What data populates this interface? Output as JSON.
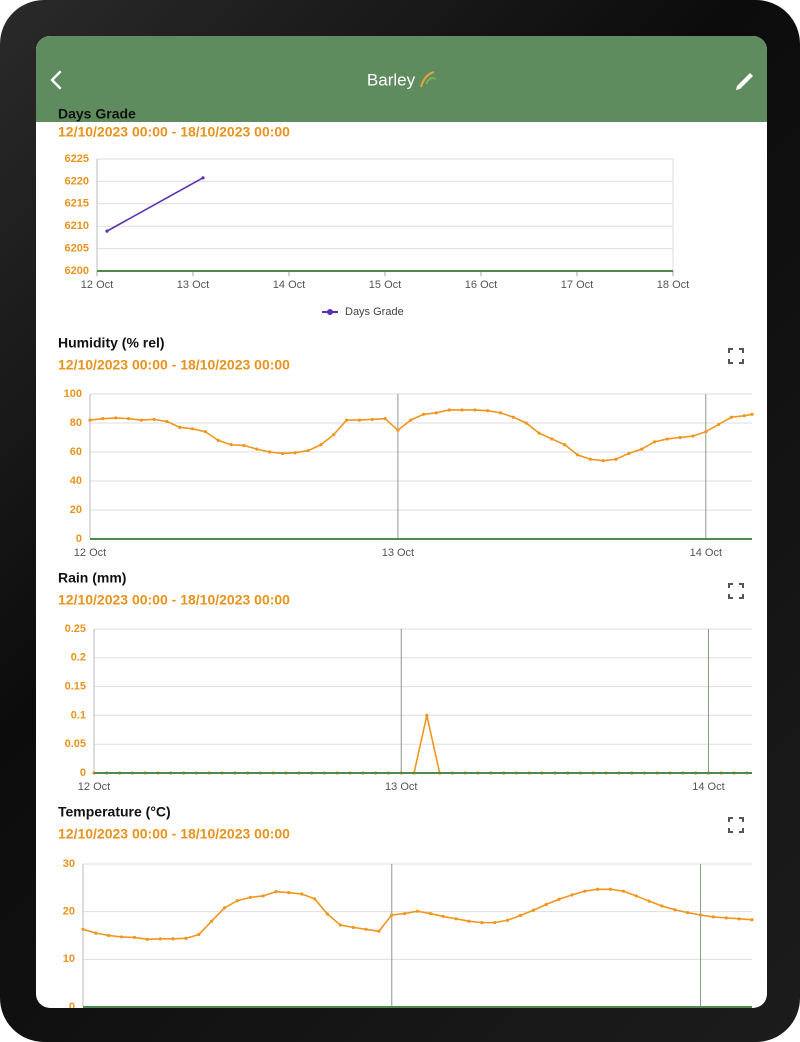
{
  "header": {
    "title": "Barley"
  },
  "chart_data": [
    {
      "type": "line",
      "title": "Days Grade",
      "subtitle": "12/10/2023 00:00 - 18/10/2023 00:00",
      "x": [
        2.5,
        26.5
      ],
      "series": [
        {
          "name": "Days Grade",
          "color": "#5b2fb5",
          "values": [
            6208.9,
            6220.8
          ]
        }
      ],
      "xlim": [
        0,
        144
      ],
      "xticks": [
        {
          "value": 0,
          "label": "12 Oct"
        },
        {
          "value": 24,
          "label": "13 Oct"
        },
        {
          "value": 48,
          "label": "14 Oct"
        },
        {
          "value": 72,
          "label": "15 Oct"
        },
        {
          "value": 96,
          "label": "16 Oct"
        },
        {
          "value": 120,
          "label": "17 Oct"
        },
        {
          "value": 144,
          "label": "18 Oct"
        }
      ],
      "ylim": [
        6200,
        6225
      ],
      "yticks": [
        6200,
        6205,
        6210,
        6215,
        6220,
        6225
      ],
      "grid": true,
      "vgrid": false,
      "legend": "bottom"
    },
    {
      "type": "line",
      "title": "Humidity (% rel)",
      "subtitle": "12/10/2023 00:00 - 18/10/2023 00:00",
      "x": [
        0,
        1,
        2,
        3,
        4,
        5,
        6,
        7,
        8,
        9,
        10,
        11,
        12,
        13,
        14,
        15,
        16,
        17,
        18,
        19,
        20,
        21,
        22,
        23,
        24,
        25,
        26,
        27,
        28,
        29,
        30,
        31,
        32,
        33,
        34,
        35,
        36,
        37,
        38,
        39,
        40,
        41,
        42,
        43,
        44,
        45,
        46,
        47,
        48,
        49,
        50,
        51,
        51.6
      ],
      "series": [
        {
          "color": "#f0961e",
          "values": [
            82,
            83,
            83.5,
            83,
            82,
            82.5,
            81,
            77,
            76,
            74,
            68,
            65,
            64.5,
            62,
            60,
            59,
            59.5,
            61,
            65,
            72,
            82,
            82,
            82.5,
            83,
            75,
            82,
            86,
            87,
            89,
            89,
            89,
            88.5,
            87,
            84,
            80,
            73,
            69,
            65,
            58,
            55,
            54,
            55,
            59,
            62,
            67,
            69,
            70,
            71,
            74,
            79,
            84,
            85,
            86
          ]
        }
      ],
      "xlim": [
        0,
        51.6
      ],
      "xticks": [
        {
          "value": 0,
          "label": "12 Oct"
        },
        {
          "value": 24,
          "label": "13 Oct"
        },
        {
          "value": 48,
          "label": "14 Oct"
        }
      ],
      "ylim": [
        0,
        100
      ],
      "yticks": [
        0,
        20,
        40,
        60,
        80,
        100
      ],
      "grid": true,
      "vgrid": true
    },
    {
      "type": "line",
      "title": "Rain (mm)",
      "subtitle": "12/10/2023 00:00 - 18/10/2023 00:00",
      "x": [
        0,
        1,
        2,
        3,
        4,
        5,
        6,
        7,
        8,
        9,
        10,
        11,
        12,
        13,
        14,
        15,
        16,
        17,
        18,
        19,
        20,
        21,
        22,
        23,
        24,
        25,
        26,
        27,
        28,
        29,
        30,
        31,
        32,
        33,
        34,
        35,
        36,
        37,
        38,
        39,
        40,
        41,
        42,
        43,
        44,
        45,
        46,
        47,
        48,
        49,
        50,
        51
      ],
      "series": [
        {
          "color": "#f0961e",
          "values": [
            0,
            0,
            0,
            0,
            0,
            0,
            0,
            0,
            0,
            0,
            0,
            0,
            0,
            0,
            0,
            0,
            0,
            0,
            0,
            0,
            0,
            0,
            0,
            0,
            0,
            0,
            0.1,
            0,
            0,
            0,
            0,
            0,
            0,
            0,
            0,
            0,
            0,
            0,
            0,
            0,
            0,
            0,
            0,
            0,
            0,
            0,
            0,
            0,
            0,
            0,
            0,
            0
          ]
        }
      ],
      "xlim": [
        0,
        51.4
      ],
      "xticks": [
        {
          "value": 0,
          "label": "12 Oct"
        },
        {
          "value": 24,
          "label": "13 Oct"
        },
        {
          "value": 48,
          "label": "14 Oct"
        }
      ],
      "ylim": [
        0,
        0.25
      ],
      "yticks": [
        0,
        0.05,
        0.1,
        0.15,
        0.2,
        0.25
      ],
      "grid": true,
      "vgrid": true
    },
    {
      "type": "line",
      "title": "Temperature (°C)",
      "subtitle": "12/10/2023 00:00 - 18/10/2023 00:00",
      "x": [
        0,
        1,
        2,
        3,
        4,
        5,
        6,
        7,
        8,
        9,
        10,
        11,
        12,
        13,
        14,
        15,
        16,
        17,
        18,
        19,
        20,
        21,
        22,
        23,
        24,
        25,
        26,
        27,
        28,
        29,
        30,
        31,
        32,
        33,
        34,
        35,
        36,
        37,
        38,
        39,
        40,
        41,
        42,
        43,
        44,
        45,
        46,
        47,
        48,
        49,
        50,
        51,
        52
      ],
      "series": [
        {
          "color": "#f0961e",
          "values": [
            16.3,
            15.5,
            15,
            14.7,
            14.6,
            14.2,
            14.3,
            14.3,
            14.4,
            15.2,
            18,
            20.8,
            22.3,
            23,
            23.3,
            24.2,
            24,
            23.7,
            22.7,
            19.5,
            17.2,
            16.7,
            16.3,
            15.9,
            19.3,
            19.6,
            20.1,
            19.6,
            19,
            18.5,
            18,
            17.7,
            17.7,
            18.2,
            19.2,
            20.3,
            21.5,
            22.6,
            23.5,
            24.3,
            24.7,
            24.7,
            24.3,
            23.3,
            22.2,
            21.2,
            20.4,
            19.8,
            19.3,
            18.9,
            18.7,
            18.5,
            18.3
          ]
        }
      ],
      "xlim": [
        0,
        52
      ],
      "vlines": [
        24,
        48
      ],
      "ylim": [
        0,
        30
      ],
      "yticks": [
        0,
        10,
        20,
        30
      ],
      "grid": true
    }
  ]
}
